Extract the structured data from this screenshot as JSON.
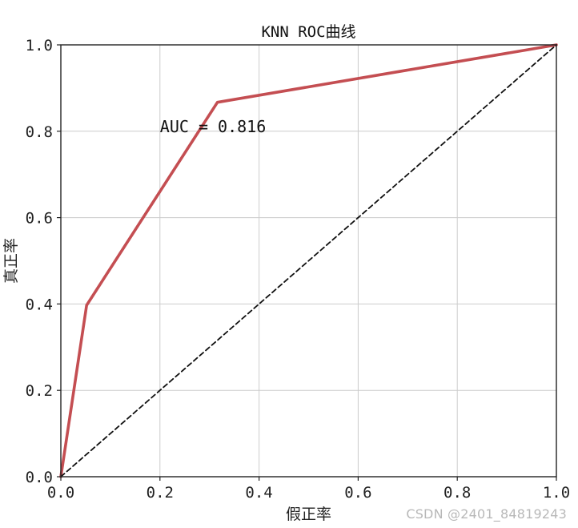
{
  "chart_data": {
    "type": "line",
    "title": "KNN ROC曲线",
    "xlabel": "假正率",
    "ylabel": "真正率",
    "xlim": [
      0,
      1
    ],
    "ylim": [
      0,
      1
    ],
    "xticks": [
      0.0,
      0.2,
      0.4,
      0.6,
      0.8,
      1.0
    ],
    "yticks": [
      0.0,
      0.2,
      0.4,
      0.6,
      0.8,
      1.0
    ],
    "xtick_labels": [
      "0.0",
      "0.2",
      "0.4",
      "0.6",
      "0.8",
      "1.0"
    ],
    "ytick_labels": [
      "0.0",
      "0.2",
      "0.4",
      "0.6",
      "0.8",
      "1.0"
    ],
    "grid": true,
    "series": [
      {
        "style": "solid",
        "color": "#c44e52",
        "x": [
          0.0,
          0.052,
          0.316,
          1.0
        ],
        "y": [
          0.0,
          0.397,
          0.867,
          1.0
        ]
      },
      {
        "style": "dashed",
        "color": "#111111",
        "x": [
          0.0,
          1.0
        ],
        "y": [
          0.0,
          1.0
        ]
      }
    ],
    "annotations": [
      {
        "text": "AUC = 0.816",
        "x": 0.2,
        "y": 0.8
      }
    ]
  },
  "watermark": "CSDN @2401_84819243",
  "colors": {
    "roc_line": "#c44e52",
    "diagonal": "#111111",
    "grid": "#cccccc",
    "axes": "#222222"
  }
}
